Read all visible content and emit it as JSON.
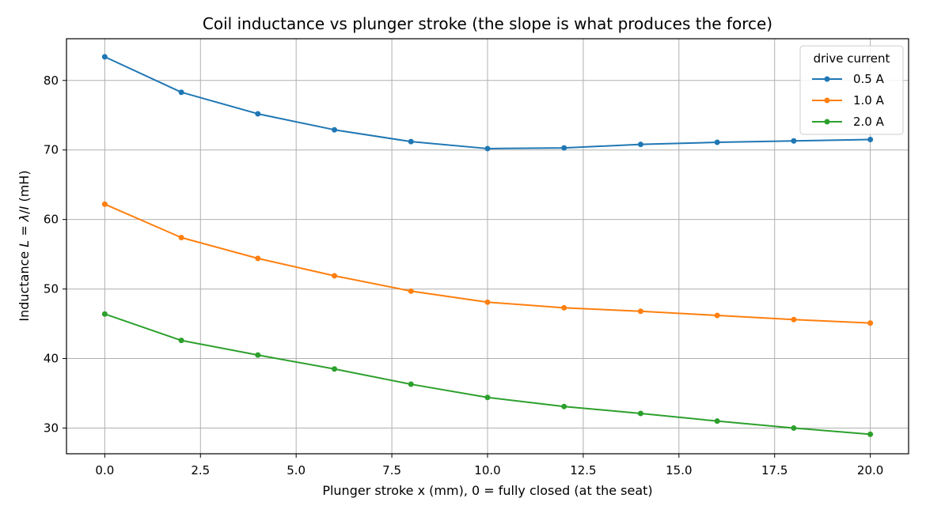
{
  "chart_data": {
    "type": "line",
    "title": "Coil inductance vs plunger stroke (the slope is what produces the force)",
    "xlabel": "Plunger stroke x (mm), 0 = fully closed (at the seat)",
    "ylabel": {
      "prefix": "Inductance ",
      "var": "L",
      "eq": " = ",
      "lambda": "λ",
      "slash": "/",
      "i": "I",
      "suffix": " (mH)"
    },
    "xlim": [
      -1.0,
      21.0
    ],
    "ylim": [
      26.3,
      86.0
    ],
    "x_ticks": [
      0.0,
      2.5,
      5.0,
      7.5,
      10.0,
      12.5,
      15.0,
      17.5,
      20.0
    ],
    "x_tick_labels": [
      "0.0",
      "2.5",
      "5.0",
      "7.5",
      "10.0",
      "12.5",
      "15.0",
      "17.5",
      "20.0"
    ],
    "y_ticks": [
      30,
      40,
      50,
      60,
      70,
      80
    ],
    "y_tick_labels": [
      "30",
      "40",
      "50",
      "60",
      "70",
      "80"
    ],
    "grid": true,
    "legend": {
      "title": "drive current",
      "placement": "top-right"
    },
    "x": [
      0,
      2,
      4,
      6,
      8,
      10,
      12,
      14,
      16,
      18,
      20
    ],
    "series": [
      {
        "name": "0.5 A",
        "color": "#1f77b4",
        "values": [
          83.4,
          78.3,
          75.2,
          72.9,
          71.2,
          70.2,
          70.3,
          70.8,
          71.1,
          71.3,
          71.5
        ]
      },
      {
        "name": "1.0 A",
        "color": "#ff7f0e",
        "values": [
          62.2,
          57.4,
          54.4,
          51.9,
          49.7,
          48.1,
          47.3,
          46.8,
          46.2,
          45.6,
          45.1
        ]
      },
      {
        "name": "2.0 A",
        "color": "#2ca02c",
        "values": [
          46.4,
          42.6,
          40.5,
          38.5,
          36.3,
          34.4,
          33.1,
          32.1,
          31.0,
          30.0,
          29.1
        ]
      }
    ]
  }
}
